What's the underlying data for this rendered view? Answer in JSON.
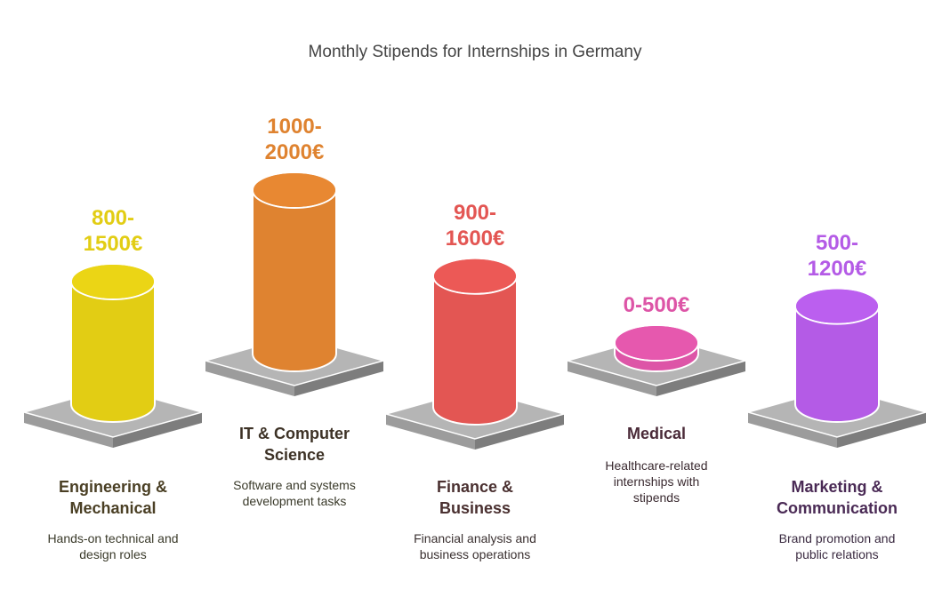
{
  "chart_data": {
    "type": "bar",
    "title": "Monthly Stipends for Internships in Germany",
    "categories": [
      "Engineering & Mechanical",
      "IT & Computer Science",
      "Finance & Business",
      "Medical",
      "Marketing & Communication"
    ],
    "value_labels": [
      "800-\n1500€",
      "1000-\n2000€",
      "900-\n1600€",
      "0-500€",
      "500-\n1200€"
    ],
    "ranges": [
      [
        800,
        1500
      ],
      [
        1000,
        2000
      ],
      [
        900,
        1600
      ],
      [
        0,
        500
      ],
      [
        500,
        1200
      ]
    ],
    "descriptions": [
      "Hands-on technical and\ndesign roles",
      "Software and systems\ndevelopment tasks",
      "Financial analysis and\nbusiness operations",
      "Healthcare-related\ninternships with\nstipends",
      "Brand promotion and\npublic relations"
    ],
    "colors": [
      "#e2cd14",
      "#df8330",
      "#e35653",
      "#dd55a7",
      "#b45be6"
    ],
    "category_colors": [
      "#4a3f24",
      "#3d3226",
      "#4a3030",
      "#4a2a38",
      "#4a2a55"
    ],
    "description_colors": [
      "#3a3a2a",
      "#3a3a2a",
      "#3a3030",
      "#3a2a30",
      "#3a2a40"
    ]
  }
}
